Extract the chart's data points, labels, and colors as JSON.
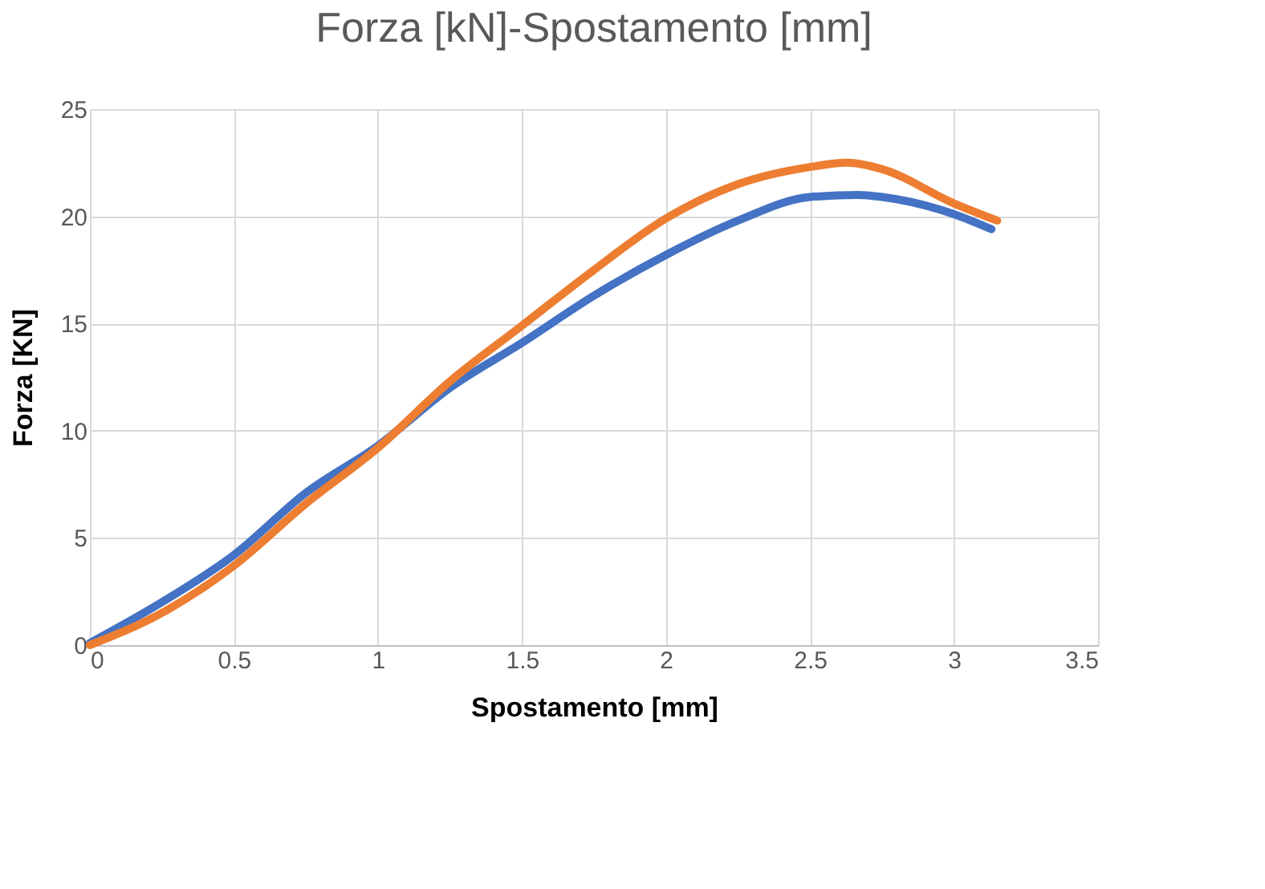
{
  "chart_data": {
    "type": "line",
    "title": "Forza [kN]-Spostamento [mm]",
    "xlabel": "Spostamento [mm]",
    "ylabel": "Forza [KN]",
    "xlim": [
      0,
      3.5
    ],
    "xticks": [
      0,
      0.5,
      1,
      1.5,
      2,
      2.5,
      3,
      3.5
    ],
    "ylim": [
      0,
      25
    ],
    "yticks": [
      0,
      5,
      10,
      15,
      20,
      25
    ],
    "grid": true,
    "legend": false,
    "marker": "none",
    "line_style": "solid",
    "series": [
      {
        "color": "#4472c4",
        "x": [
          0,
          0.25,
          0.5,
          0.75,
          1,
          1.25,
          1.5,
          1.75,
          2,
          2.25,
          2.5,
          2.67,
          2.75,
          3,
          3.13
        ],
        "values": [
          0.1,
          2.0,
          4.2,
          7.1,
          9.3,
          12.0,
          14.1,
          16.3,
          18.2,
          19.8,
          20.9,
          21.0,
          20.9,
          20.1,
          19.4
        ]
      },
      {
        "color": "#ed7d31",
        "x": [
          0,
          0.25,
          0.5,
          0.75,
          1,
          1.25,
          1.5,
          1.75,
          2,
          2.25,
          2.5,
          2.63,
          2.75,
          3,
          3.15
        ],
        "values": [
          0,
          1.5,
          3.7,
          6.6,
          9.2,
          12.3,
          14.9,
          17.5,
          19.9,
          21.5,
          22.3,
          22.5,
          22.2,
          20.6,
          19.8
        ]
      }
    ]
  }
}
